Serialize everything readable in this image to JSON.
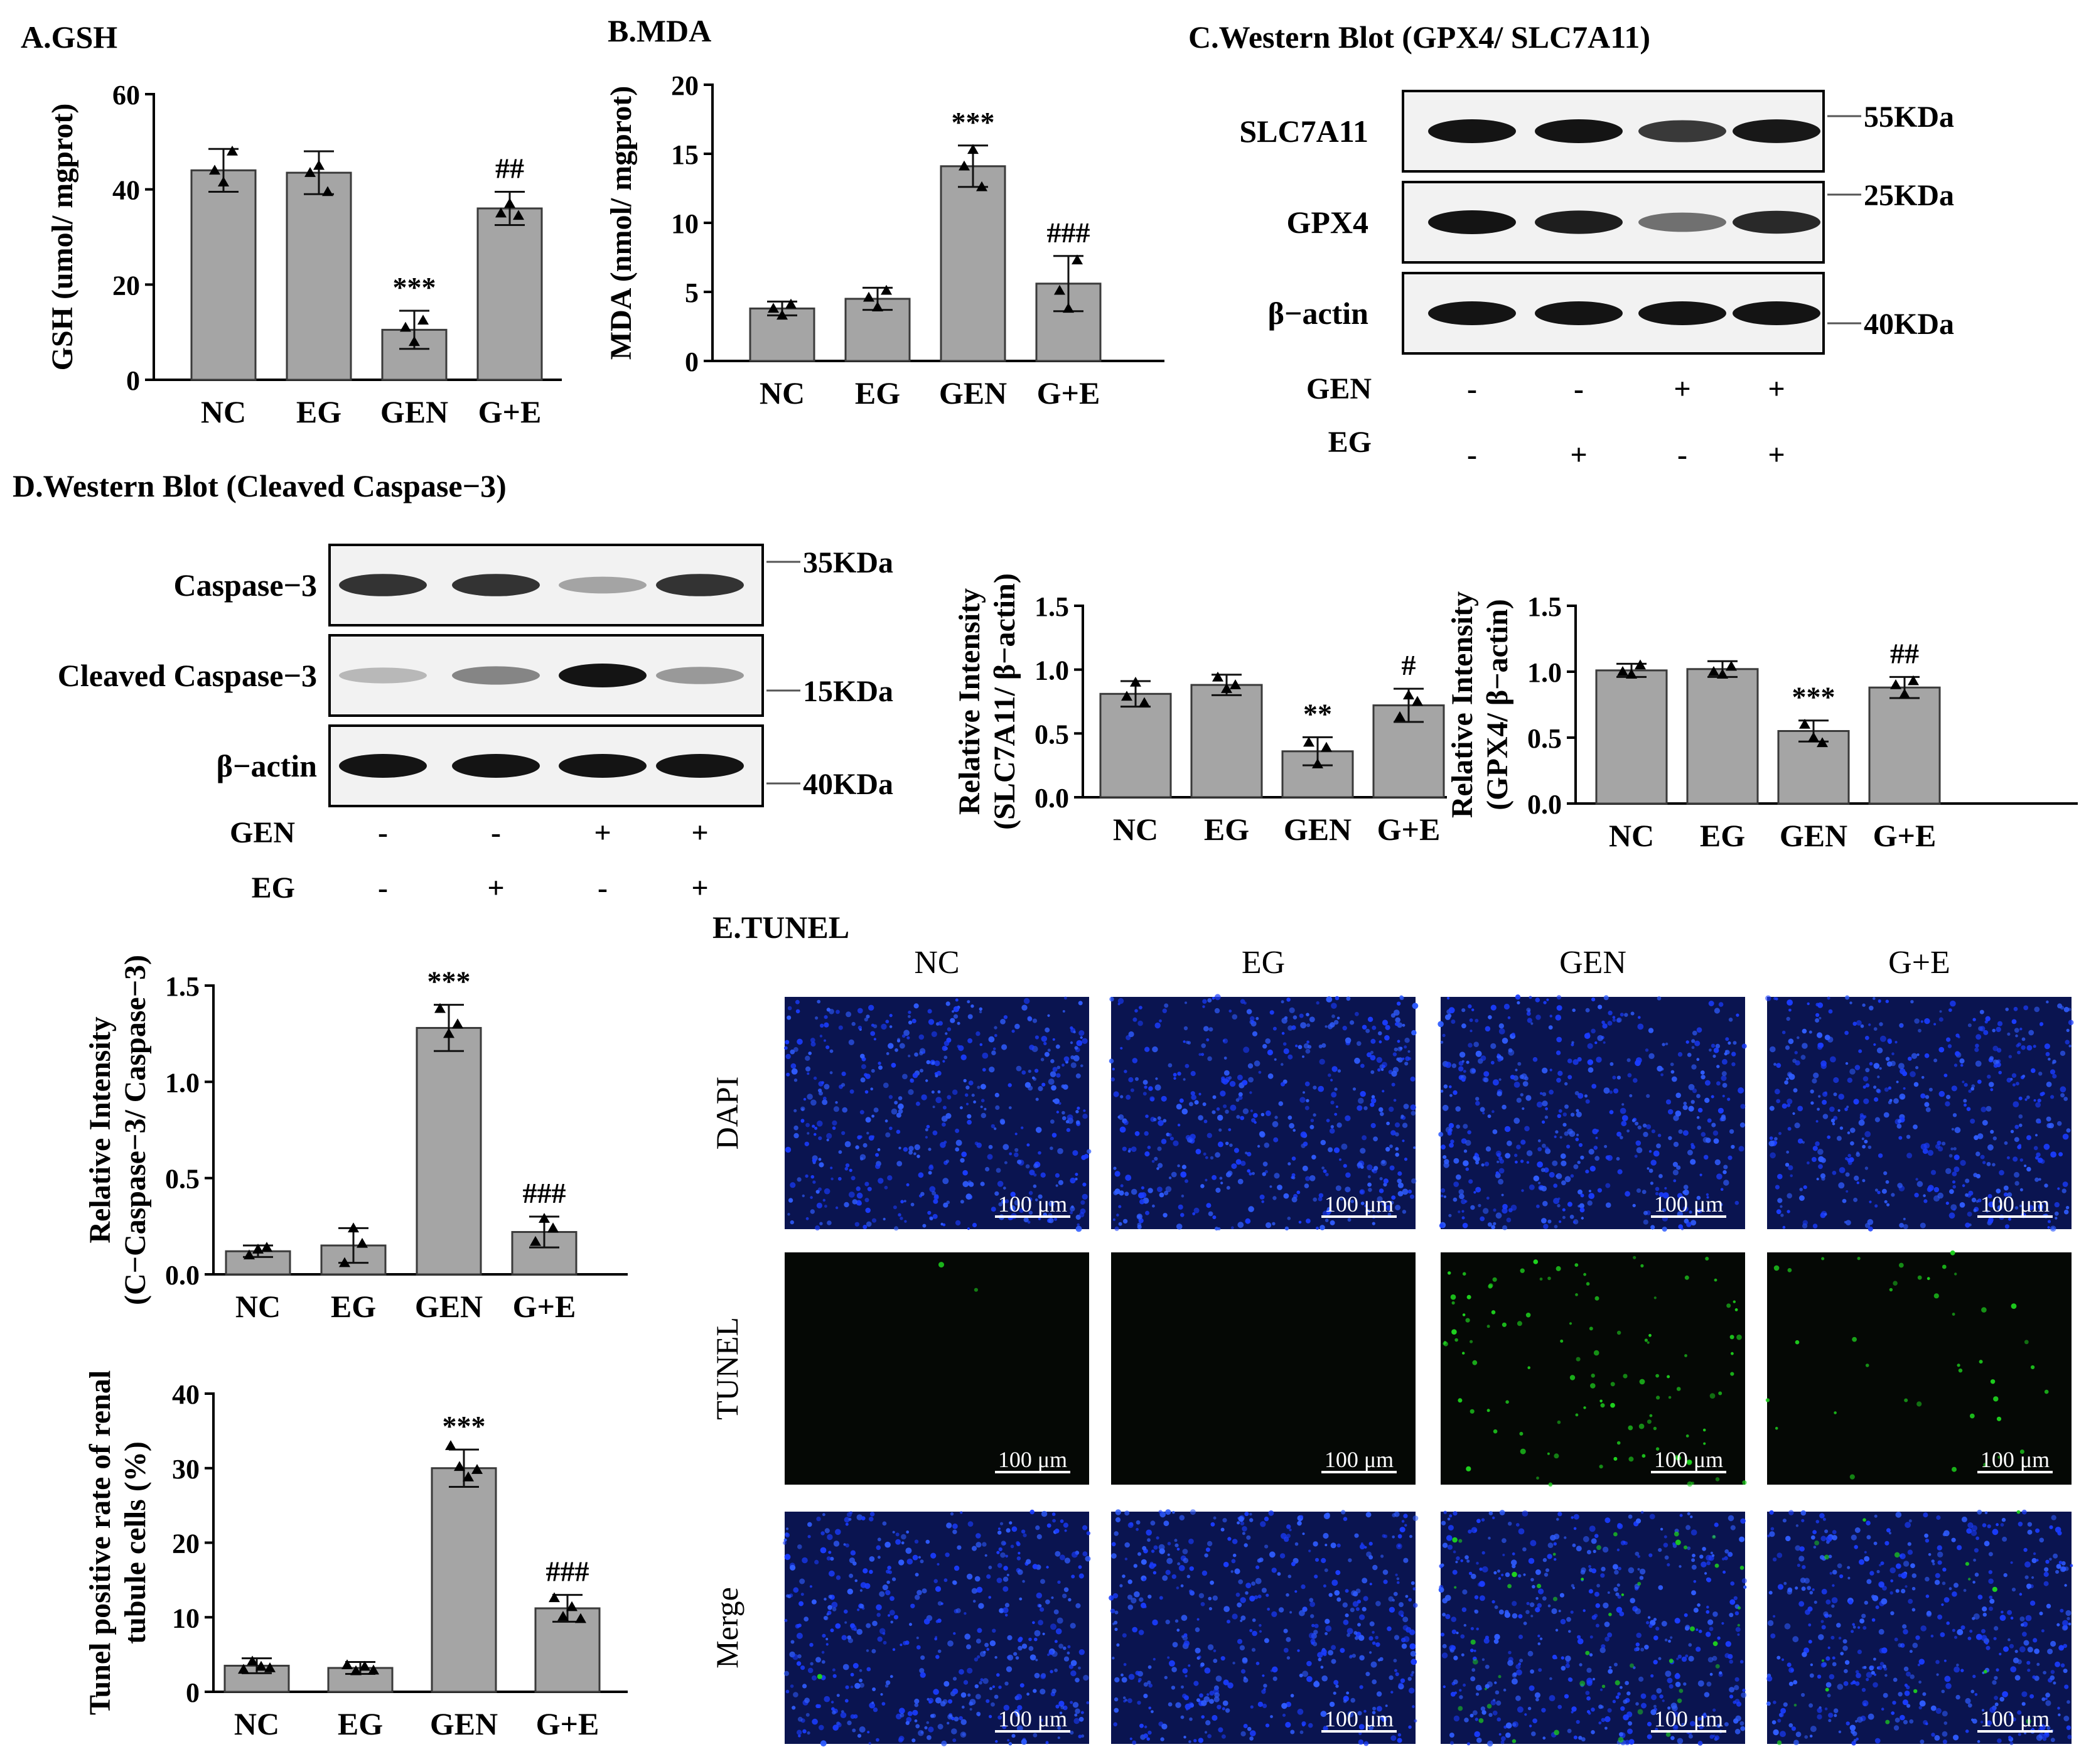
{
  "panels": {
    "a": "A.GSH",
    "b": "B.MDA",
    "c": "C.Western Blot (GPX4/ SLC7A11)",
    "d": "D.Western Blot (Cleaved Caspase−3)",
    "e": "E.TUNEL"
  },
  "colors": {
    "bar": "#a5a5a5",
    "bar_edge": "#3a3a3a",
    "tunel_green": "#1ed21e",
    "dapi_blue": "#1030c8"
  },
  "chart_data": [
    {
      "id": "gsh",
      "type": "bar",
      "categories": [
        "NC",
        "EG",
        "GEN",
        "G+E"
      ],
      "values": [
        44,
        43.5,
        10.5,
        36
      ],
      "errors": [
        4.5,
        4.5,
        4,
        3.5
      ],
      "points": [
        [
          44,
          41.5,
          48
        ],
        [
          43.5,
          45,
          39.5
        ],
        [
          11,
          8,
          12.5
        ],
        [
          35,
          37,
          34.5
        ]
      ],
      "annotations": [
        "",
        "",
        "***",
        "##"
      ],
      "ylabel_lines": [
        "GSH (umol/ mgprot)"
      ],
      "ylim": [
        0,
        60
      ],
      "yticks": [
        0,
        20,
        40,
        60
      ],
      "tick_decimals": 0
    },
    {
      "id": "mda",
      "type": "bar",
      "categories": [
        "NC",
        "EG",
        "GEN",
        "G+E"
      ],
      "values": [
        3.8,
        4.5,
        14.1,
        5.6
      ],
      "errors": [
        0.5,
        0.8,
        1.5,
        2
      ],
      "points": [
        [
          3.8,
          3.3,
          4.1
        ],
        [
          4.6,
          3.9,
          5.1
        ],
        [
          14.1,
          15.3,
          12.6
        ],
        [
          5.1,
          3.8,
          7.3
        ]
      ],
      "annotations": [
        "",
        "",
        "***",
        "###"
      ],
      "ylabel_lines": [
        "MDA (nmol/ mgprot)"
      ],
      "ylim": [
        0,
        20
      ],
      "yticks": [
        0,
        5,
        10,
        15,
        20
      ],
      "tick_decimals": 0
    },
    {
      "id": "slc7a11",
      "type": "bar",
      "categories": [
        "NC",
        "EG",
        "GEN",
        "G+E"
      ],
      "values": [
        0.81,
        0.88,
        0.36,
        0.72
      ],
      "errors": [
        0.1,
        0.08,
        0.11,
        0.13
      ],
      "points": [
        [
          0.79,
          0.9,
          0.74
        ],
        [
          0.94,
          0.85,
          0.88
        ],
        [
          0.43,
          0.26,
          0.39
        ],
        [
          0.63,
          0.8,
          0.75
        ]
      ],
      "annotations": [
        "",
        "",
        "**",
        "#"
      ],
      "ylabel_lines": [
        "Relative Intensity",
        "(SLC7A11/ β−actin)"
      ],
      "ylim": [
        0,
        1.5
      ],
      "yticks": [
        0,
        0.5,
        1,
        1.5
      ],
      "tick_decimals": 1
    },
    {
      "id": "gpx4",
      "type": "bar",
      "categories": [
        "NC",
        "EG",
        "GEN",
        "G+E"
      ],
      "values": [
        1.01,
        1.02,
        0.55,
        0.88
      ],
      "errors": [
        0.05,
        0.06,
        0.08,
        0.08
      ],
      "points": [
        [
          1.0,
          0.98,
          1.05
        ],
        [
          1.0,
          0.98,
          1.04
        ],
        [
          0.6,
          0.5,
          0.46
        ],
        [
          0.9,
          0.83,
          0.93
        ]
      ],
      "annotations": [
        "",
        "",
        "***",
        "##"
      ],
      "ylabel_lines": [
        "Relative Intensity",
        "(GPX4/ β−actin)"
      ],
      "ylim": [
        0,
        1.5
      ],
      "yticks": [
        0,
        0.5,
        1,
        1.5
      ],
      "tick_decimals": 1
    },
    {
      "id": "caspase",
      "type": "bar",
      "categories": [
        "NC",
        "EG",
        "GEN",
        "G+E"
      ],
      "values": [
        0.12,
        0.15,
        1.28,
        0.22
      ],
      "errors": [
        0.03,
        0.09,
        0.12,
        0.08
      ],
      "points": [
        [
          0.1,
          0.13,
          0.14
        ],
        [
          0.06,
          0.24,
          0.16
        ],
        [
          1.38,
          1.25,
          1.3
        ],
        [
          0.17,
          0.29,
          0.24
        ]
      ],
      "annotations": [
        "",
        "",
        "***",
        "###"
      ],
      "ylabel_lines": [
        "Relative Intensity",
        "(C−Caspase−3/ Caspase−3)"
      ],
      "ylim": [
        0,
        1.5
      ],
      "yticks": [
        0,
        0.5,
        1,
        1.5
      ],
      "tick_decimals": 1
    },
    {
      "id": "tunel",
      "type": "bar",
      "categories": [
        "NC",
        "EG",
        "GEN",
        "G+E"
      ],
      "values": [
        3.5,
        3.2,
        30,
        11.2
      ],
      "errors": [
        1,
        0.8,
        2.5,
        1.8
      ],
      "points": [
        [
          3,
          4.1,
          3.4,
          3.2
        ],
        [
          3.6,
          2.8,
          3.4,
          2.9
        ],
        [
          33,
          30.2,
          28.8,
          29.8
        ],
        [
          12.6,
          10.1,
          11.4,
          9.8
        ]
      ],
      "annotations": [
        "",
        "",
        "***",
        "###"
      ],
      "ylabel_lines": [
        "Tunel positive rate of renal",
        "tubule cells (%)"
      ],
      "ylim": [
        0,
        40
      ],
      "yticks": [
        0,
        10,
        20,
        30,
        40
      ],
      "tick_decimals": 0
    }
  ],
  "blot_c": {
    "rows": [
      {
        "label": "SLC7A11",
        "intensity": [
          1,
          1,
          0.82,
          0.98
        ]
      },
      {
        "label": "GPX4",
        "intensity": [
          1,
          0.95,
          0.55,
          0.9
        ]
      },
      {
        "label": "β−actin",
        "intensity": [
          1,
          1,
          1,
          1
        ]
      }
    ],
    "markers": [
      "55KDa",
      "25KDa",
      "40KDa"
    ],
    "treatments": [
      {
        "name": "GEN",
        "signs": [
          "-",
          "-",
          "+",
          "+"
        ]
      },
      {
        "name": "EG",
        "signs": [
          "-",
          "+",
          "-",
          "+"
        ]
      }
    ]
  },
  "blot_d": {
    "rows": [
      {
        "label": "Caspase−3",
        "intensity": [
          0.85,
          0.85,
          0.3,
          0.85
        ]
      },
      {
        "label": "Cleaved Caspase−3",
        "intensity": [
          0.2,
          0.45,
          1,
          0.35
        ]
      },
      {
        "label": "β−actin",
        "intensity": [
          1,
          1,
          1,
          1
        ]
      }
    ],
    "markers": [
      "35KDa",
      "15KDa",
      "40KDa"
    ],
    "treatments": [
      {
        "name": "GEN",
        "signs": [
          "-",
          "-",
          "+",
          "+"
        ]
      },
      {
        "name": "EG",
        "signs": [
          "-",
          "+",
          "-",
          "+"
        ]
      }
    ]
  },
  "tunel_grid": {
    "columns": [
      "NC",
      "EG",
      "GEN",
      "G+E"
    ],
    "rows": [
      "DAPI",
      "TUNEL",
      "Merge"
    ],
    "scale_bar": "100 μm",
    "green_signal": [
      0.02,
      0.0,
      1.0,
      0.35
    ]
  }
}
